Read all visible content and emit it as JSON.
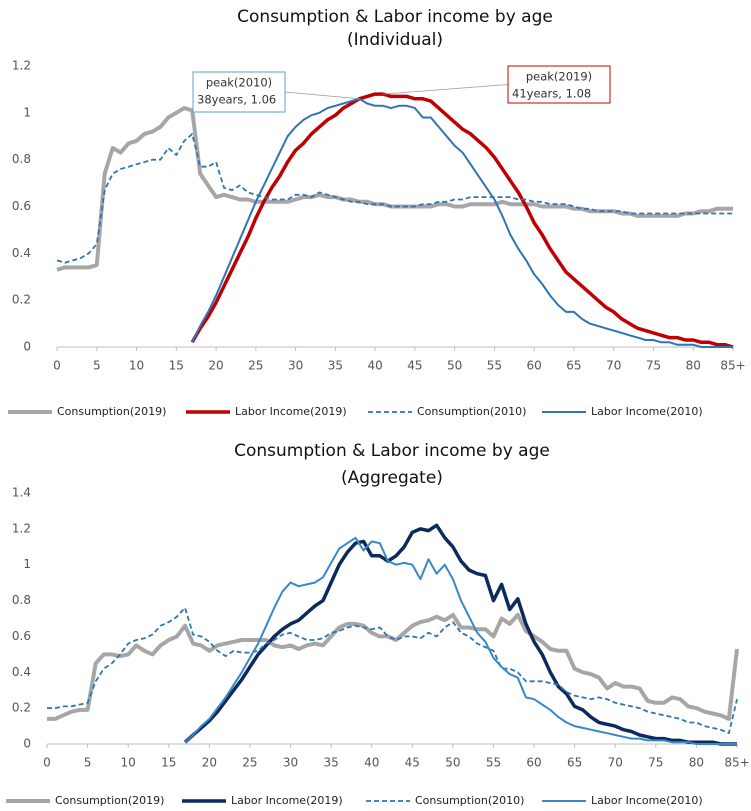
{
  "chart_data": [
    {
      "type": "line",
      "title": "Consumption & Labor income by age",
      "subtitle": "(Individual)",
      "x": [
        0,
        1,
        2,
        3,
        4,
        5,
        6,
        7,
        8,
        9,
        10,
        11,
        12,
        13,
        14,
        15,
        16,
        17,
        18,
        19,
        20,
        21,
        22,
        23,
        24,
        25,
        26,
        27,
        28,
        29,
        30,
        31,
        32,
        33,
        34,
        35,
        36,
        37,
        38,
        39,
        40,
        41,
        42,
        43,
        44,
        45,
        46,
        47,
        48,
        49,
        50,
        51,
        52,
        53,
        54,
        55,
        56,
        57,
        58,
        59,
        60,
        61,
        62,
        63,
        64,
        65,
        66,
        67,
        68,
        69,
        70,
        71,
        72,
        73,
        74,
        75,
        76,
        77,
        78,
        79,
        80,
        81,
        82,
        83,
        84,
        85
      ],
      "xlim": [
        0,
        85
      ],
      "xticks": [
        0,
        5,
        10,
        15,
        20,
        25,
        30,
        35,
        40,
        45,
        50,
        55,
        60,
        65,
        70,
        75,
        80,
        {
          "value": 85,
          "label": "85+"
        }
      ],
      "ylim": [
        0,
        1.2
      ],
      "yticks": [
        0,
        0.2,
        0.4,
        0.6,
        0.8,
        1,
        1.2
      ],
      "grid": false,
      "series": [
        {
          "name": "Consumption(2019)",
          "color": "#a6a6a6",
          "width": 4,
          "dash": false,
          "values": [
            0.33,
            0.34,
            0.34,
            0.34,
            0.34,
            0.35,
            0.74,
            0.85,
            0.83,
            0.87,
            0.88,
            0.91,
            0.92,
            0.94,
            0.98,
            1.0,
            1.02,
            1.01,
            0.74,
            0.69,
            0.64,
            0.65,
            0.64,
            0.63,
            0.63,
            0.62,
            0.62,
            0.62,
            0.62,
            0.62,
            0.63,
            0.64,
            0.64,
            0.65,
            0.64,
            0.64,
            0.63,
            0.63,
            0.62,
            0.62,
            0.61,
            0.61,
            0.6,
            0.6,
            0.6,
            0.6,
            0.6,
            0.6,
            0.61,
            0.61,
            0.6,
            0.6,
            0.61,
            0.61,
            0.61,
            0.61,
            0.62,
            0.61,
            0.61,
            0.61,
            0.61,
            0.6,
            0.6,
            0.6,
            0.6,
            0.59,
            0.59,
            0.58,
            0.58,
            0.58,
            0.58,
            0.57,
            0.57,
            0.56,
            0.56,
            0.56,
            0.56,
            0.56,
            0.56,
            0.57,
            0.57,
            0.58,
            0.58,
            0.59,
            0.59,
            0.59
          ]
        },
        {
          "name": "Labor Income(2019)",
          "color": "#c00000",
          "width": 3.5,
          "dash": false,
          "values": [
            null,
            null,
            null,
            null,
            null,
            null,
            null,
            null,
            null,
            null,
            null,
            null,
            null,
            null,
            null,
            null,
            null,
            0.02,
            0.08,
            0.13,
            0.19,
            0.26,
            0.33,
            0.4,
            0.47,
            0.55,
            0.62,
            0.68,
            0.73,
            0.79,
            0.84,
            0.87,
            0.91,
            0.94,
            0.97,
            0.99,
            1.02,
            1.04,
            1.06,
            1.07,
            1.08,
            1.08,
            1.07,
            1.07,
            1.07,
            1.06,
            1.06,
            1.05,
            1.02,
            0.99,
            0.96,
            0.93,
            0.91,
            0.88,
            0.85,
            0.81,
            0.76,
            0.71,
            0.66,
            0.6,
            0.53,
            0.48,
            0.42,
            0.37,
            0.32,
            0.29,
            0.26,
            0.23,
            0.2,
            0.17,
            0.15,
            0.12,
            0.1,
            0.08,
            0.07,
            0.06,
            0.05,
            0.04,
            0.04,
            0.03,
            0.03,
            0.02,
            0.02,
            0.01,
            0.01,
            0
          ]
        },
        {
          "name": "Consumption(2010)",
          "color": "#2e75b6",
          "width": 1.8,
          "dash": true,
          "values": [
            0.37,
            0.36,
            0.37,
            0.38,
            0.4,
            0.44,
            0.67,
            0.74,
            0.76,
            0.77,
            0.78,
            0.79,
            0.8,
            0.8,
            0.85,
            0.82,
            0.88,
            0.91,
            0.77,
            0.77,
            0.79,
            0.68,
            0.67,
            0.69,
            0.66,
            0.65,
            0.64,
            0.63,
            0.63,
            0.63,
            0.65,
            0.65,
            0.64,
            0.66,
            0.65,
            0.64,
            0.63,
            0.62,
            0.62,
            0.61,
            0.61,
            0.61,
            0.6,
            0.6,
            0.6,
            0.6,
            0.61,
            0.61,
            0.62,
            0.62,
            0.63,
            0.63,
            0.64,
            0.64,
            0.64,
            0.64,
            0.64,
            0.64,
            0.63,
            0.63,
            0.62,
            0.62,
            0.61,
            0.61,
            0.61,
            0.6,
            0.59,
            0.59,
            0.58,
            0.58,
            0.58,
            0.58,
            0.57,
            0.57,
            0.57,
            0.57,
            0.57,
            0.57,
            0.57,
            0.57,
            0.57,
            0.57,
            0.57,
            0.57,
            0.57,
            0.57
          ]
        },
        {
          "name": "Labor Income(2010)",
          "color": "#2e75b6",
          "width": 2,
          "dash": false,
          "values": [
            null,
            null,
            null,
            null,
            null,
            null,
            null,
            null,
            null,
            null,
            null,
            null,
            null,
            null,
            null,
            null,
            null,
            0.02,
            0.09,
            0.15,
            0.22,
            0.3,
            0.38,
            0.46,
            0.54,
            0.62,
            0.69,
            0.76,
            0.83,
            0.9,
            0.94,
            0.97,
            0.99,
            1.0,
            1.02,
            1.03,
            1.04,
            1.05,
            1.06,
            1.04,
            1.03,
            1.03,
            1.02,
            1.03,
            1.03,
            1.02,
            0.98,
            0.98,
            0.94,
            0.9,
            0.86,
            0.83,
            0.78,
            0.73,
            0.68,
            0.63,
            0.56,
            0.48,
            0.42,
            0.37,
            0.31,
            0.27,
            0.22,
            0.18,
            0.15,
            0.15,
            0.12,
            0.1,
            0.09,
            0.08,
            0.07,
            0.06,
            0.05,
            0.04,
            0.03,
            0.03,
            0.02,
            0.02,
            0.01,
            0.01,
            0.01,
            0,
            0,
            0,
            0,
            0
          ]
        }
      ],
      "annotations": [
        {
          "lines": [
            "peak(2010)",
            "38years, 1.06"
          ],
          "x": 38,
          "y": 1.06,
          "color": "#5ba3d0"
        },
        {
          "lines": [
            "peak(2019)",
            "41years, 1.08"
          ],
          "x": 41,
          "y": 1.08,
          "color": "#c00000"
        }
      ]
    },
    {
      "type": "line",
      "title": "Consumption  & Labor income by age",
      "subtitle": "(Aggregate)",
      "x": [
        0,
        1,
        2,
        3,
        4,
        5,
        6,
        7,
        8,
        9,
        10,
        11,
        12,
        13,
        14,
        15,
        16,
        17,
        18,
        19,
        20,
        21,
        22,
        23,
        24,
        25,
        26,
        27,
        28,
        29,
        30,
        31,
        32,
        33,
        34,
        35,
        36,
        37,
        38,
        39,
        40,
        41,
        42,
        43,
        44,
        45,
        46,
        47,
        48,
        49,
        50,
        51,
        52,
        53,
        54,
        55,
        56,
        57,
        58,
        59,
        60,
        61,
        62,
        63,
        64,
        65,
        66,
        67,
        68,
        69,
        70,
        71,
        72,
        73,
        74,
        75,
        76,
        77,
        78,
        79,
        80,
        81,
        82,
        83,
        84,
        85
      ],
      "xlim": [
        0,
        85
      ],
      "xticks": [
        0,
        5,
        10,
        15,
        20,
        25,
        30,
        35,
        40,
        45,
        50,
        55,
        60,
        65,
        70,
        75,
        80,
        {
          "value": 85,
          "label": "85+"
        }
      ],
      "ylim": [
        0,
        1.4
      ],
      "yticks": [
        0,
        0.2,
        0.4,
        0.6,
        0.8,
        1,
        1.2,
        1.4
      ],
      "grid": false,
      "series": [
        {
          "name": "Consumption(2019)",
          "color": "#a6a6a6",
          "width": 4,
          "dash": false,
          "values": [
            0.14,
            0.14,
            0.16,
            0.18,
            0.19,
            0.19,
            0.45,
            0.5,
            0.5,
            0.49,
            0.5,
            0.55,
            0.52,
            0.5,
            0.55,
            0.58,
            0.6,
            0.66,
            0.56,
            0.55,
            0.52,
            0.55,
            0.56,
            0.57,
            0.58,
            0.58,
            0.58,
            0.58,
            0.55,
            0.54,
            0.55,
            0.53,
            0.55,
            0.56,
            0.55,
            0.6,
            0.65,
            0.67,
            0.67,
            0.66,
            0.62,
            0.6,
            0.6,
            0.58,
            0.62,
            0.66,
            0.68,
            0.69,
            0.71,
            0.69,
            0.72,
            0.65,
            0.65,
            0.64,
            0.64,
            0.6,
            0.7,
            0.67,
            0.72,
            0.63,
            0.6,
            0.57,
            0.53,
            0.52,
            0.52,
            0.42,
            0.4,
            0.39,
            0.37,
            0.31,
            0.34,
            0.32,
            0.32,
            0.31,
            0.24,
            0.23,
            0.23,
            0.26,
            0.25,
            0.21,
            0.2,
            0.18,
            0.17,
            0.16,
            0.14,
            0.53
          ]
        },
        {
          "name": "Labor Income(2019)",
          "color": "#0d2a5c",
          "width": 3.5,
          "dash": false,
          "values": [
            null,
            null,
            null,
            null,
            null,
            null,
            null,
            null,
            null,
            null,
            null,
            null,
            null,
            null,
            null,
            null,
            null,
            0.01,
            0.05,
            0.09,
            0.13,
            0.18,
            0.24,
            0.3,
            0.36,
            0.43,
            0.5,
            0.55,
            0.6,
            0.64,
            0.67,
            0.69,
            0.73,
            0.77,
            0.8,
            0.9,
            1.0,
            1.07,
            1.12,
            1.13,
            1.05,
            1.05,
            1.02,
            1.05,
            1.1,
            1.18,
            1.2,
            1.19,
            1.22,
            1.15,
            1.1,
            1.02,
            0.97,
            0.95,
            0.94,
            0.8,
            0.89,
            0.75,
            0.81,
            0.67,
            0.57,
            0.5,
            0.4,
            0.32,
            0.28,
            0.21,
            0.19,
            0.15,
            0.12,
            0.11,
            0.1,
            0.08,
            0.07,
            0.05,
            0.04,
            0.03,
            0.03,
            0.02,
            0.02,
            0.01,
            0.01,
            0.01,
            0.01,
            0,
            0,
            0
          ]
        },
        {
          "name": "Consumption(2010)",
          "color": "#2e75b6",
          "width": 1.8,
          "dash": true,
          "values": [
            0.2,
            0.2,
            0.21,
            0.21,
            0.22,
            0.23,
            0.35,
            0.42,
            0.45,
            0.5,
            0.56,
            0.58,
            0.59,
            0.61,
            0.66,
            0.68,
            0.71,
            0.76,
            0.61,
            0.6,
            0.57,
            0.52,
            0.49,
            0.52,
            0.51,
            0.51,
            0.52,
            0.56,
            0.58,
            0.61,
            0.62,
            0.6,
            0.58,
            0.58,
            0.59,
            0.62,
            0.63,
            0.65,
            0.66,
            0.65,
            0.64,
            0.65,
            0.6,
            0.58,
            0.6,
            0.6,
            0.59,
            0.62,
            0.6,
            0.65,
            0.68,
            0.62,
            0.6,
            0.56,
            0.54,
            0.52,
            0.42,
            0.42,
            0.4,
            0.35,
            0.35,
            0.35,
            0.34,
            0.33,
            0.29,
            0.27,
            0.26,
            0.25,
            0.26,
            0.25,
            0.23,
            0.22,
            0.21,
            0.2,
            0.18,
            0.17,
            0.16,
            0.15,
            0.14,
            0.12,
            0.12,
            0.1,
            0.09,
            0.08,
            0.06,
            0.25
          ]
        },
        {
          "name": "Labor Income(2010)",
          "color": "#3a87c8",
          "width": 2,
          "dash": false,
          "values": [
            null,
            null,
            null,
            null,
            null,
            null,
            null,
            null,
            null,
            null,
            null,
            null,
            null,
            null,
            null,
            null,
            null,
            0.01,
            0.05,
            0.1,
            0.14,
            0.2,
            0.26,
            0.33,
            0.4,
            0.48,
            0.56,
            0.66,
            0.76,
            0.85,
            0.9,
            0.88,
            0.89,
            0.9,
            0.93,
            1.01,
            1.09,
            1.12,
            1.15,
            1.08,
            1.13,
            1.12,
            1.02,
            1.0,
            1.01,
            1.0,
            0.92,
            1.03,
            0.95,
            1.0,
            0.92,
            0.8,
            0.71,
            0.62,
            0.57,
            0.48,
            0.43,
            0.39,
            0.37,
            0.26,
            0.25,
            0.22,
            0.19,
            0.15,
            0.12,
            0.1,
            0.09,
            0.08,
            0.07,
            0.06,
            0.05,
            0.04,
            0.03,
            0.03,
            0.02,
            0.02,
            0.02,
            0.01,
            0.01,
            0.01,
            0,
            0,
            0,
            0,
            0,
            0
          ]
        }
      ]
    }
  ]
}
